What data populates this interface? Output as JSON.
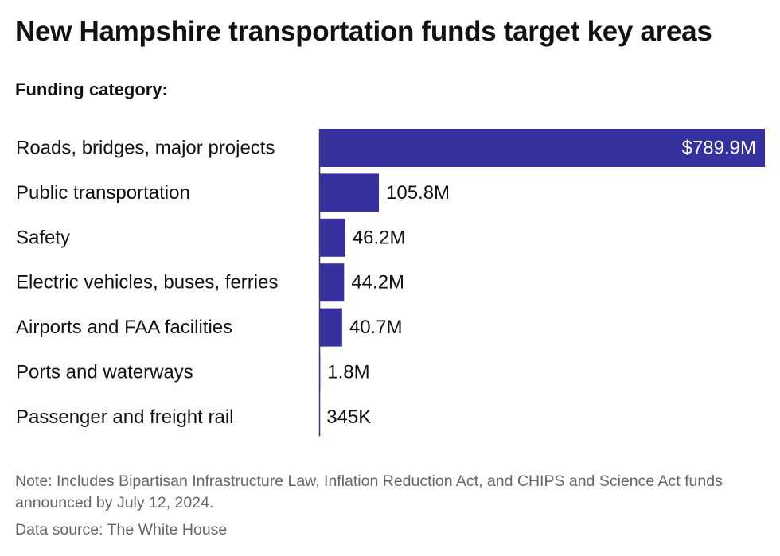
{
  "header": {
    "title": "New Hampshire transportation funds target key areas",
    "subtitle": "Funding category:"
  },
  "footer": {
    "note": "Note: Includes Bipartisan Infrastructure Law, Inflation Reduction Act, and CHIPS and Science Act funds announced by July 12, 2024.",
    "source": "Data source: The White House"
  },
  "colors": {
    "bar": "#3731a0",
    "inside_label": "#ffffff",
    "outside_label": "#111111",
    "category_label": "#111111"
  },
  "chart_data": {
    "type": "bar",
    "orientation": "horizontal",
    "title": "New Hampshire transportation funds target key areas",
    "subtitle": "Funding category:",
    "xlabel": "",
    "ylabel": "",
    "grid": false,
    "legend": "none",
    "categories": [
      "Roads, bridges, major projects",
      "Public transportation",
      "Safety",
      "Electric vehicles, buses, ferries",
      "Airports and FAA facilities",
      "Ports and waterways",
      "Passenger and freight rail"
    ],
    "values": [
      789900000,
      105800000,
      46200000,
      44200000,
      40700000,
      1800000,
      345000
    ],
    "value_labels": [
      "$789.9M",
      "105.8M",
      "46.2M",
      "44.2M",
      "40.7M",
      "1.8M",
      "345K"
    ],
    "xlim": [
      0,
      789900000
    ]
  }
}
